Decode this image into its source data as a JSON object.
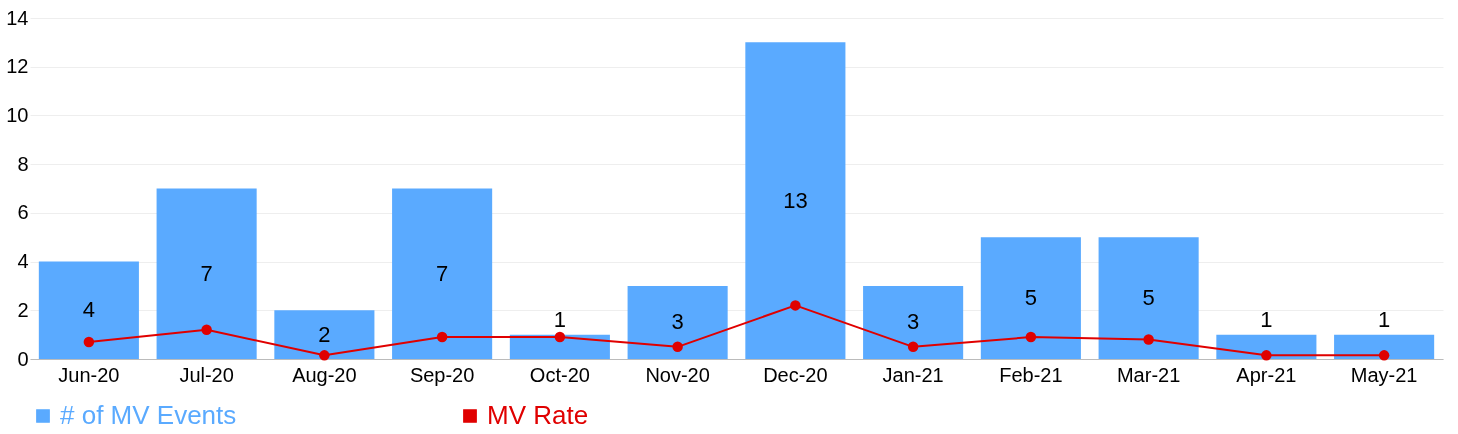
{
  "chart_data": {
    "type": "bar",
    "categories": [
      "Jun-20",
      "Jul-20",
      "Aug-20",
      "Sep-20",
      "Oct-20",
      "Nov-20",
      "Dec-20",
      "Jan-21",
      "Feb-21",
      "Mar-21",
      "Apr-21",
      "May-21"
    ],
    "series": [
      {
        "name": "# of MV Events",
        "color": "#5aaaff",
        "values": [
          4,
          7,
          2,
          7,
          1,
          3,
          13,
          3,
          5,
          5,
          1,
          1
        ],
        "data_labels": true
      },
      {
        "name": "MV Rate",
        "type": "line",
        "color": "#e00000",
        "values": [
          0.7,
          1.2,
          0.15,
          0.9,
          0.9,
          0.5,
          2.2,
          0.5,
          0.9,
          0.8,
          0.15,
          0.15
        ],
        "marker": "circle"
      }
    ],
    "ylim": [
      0,
      14
    ],
    "yticks": [
      0,
      2,
      4,
      6,
      8,
      10,
      12,
      14
    ],
    "grid": "y",
    "legend": "bottom"
  }
}
